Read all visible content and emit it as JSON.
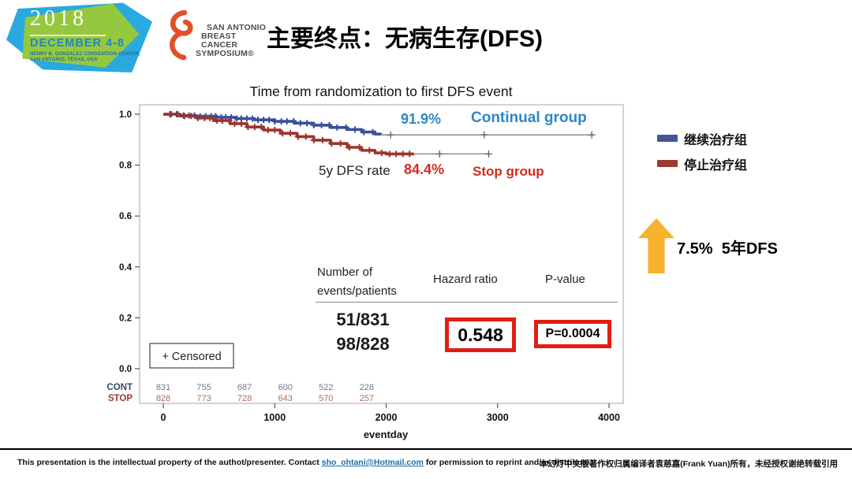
{
  "banner": {
    "year": "2018",
    "dates": "DECEMBER 4-8",
    "venue_line1": "HENRY B. GONZALEZ CONVENTION CENTER,",
    "venue_line2": "SAN ANTONIO, TEXAS, USA"
  },
  "logo": {
    "line1": "SAN ANTONIO",
    "line2": "BREAST CANCER",
    "line3": "SYMPOSIUM®"
  },
  "slide_title": "主要终点：无病生存(DFS)",
  "annotations": {
    "continual_rate": "91.9%",
    "continual_label": "Continual group",
    "rate_label": "5y DFS rate",
    "stop_rate": "84.4%",
    "stop_label": "Stop group"
  },
  "stats_table": {
    "col1_header_line1": "Number of",
    "col1_header_line2": "events/patients",
    "col2_header": "Hazard ratio",
    "col3_header": "P-value",
    "events_continual": "51/831",
    "events_stop": "98/828",
    "hazard_ratio": "0.548",
    "p_value": "P=0.0004"
  },
  "legend": {
    "continual": "继续治疗组",
    "stop": "停止治疗组"
  },
  "highlight": {
    "text": "7.5%  5年DFS"
  },
  "footer": {
    "left_prefix": "This presentation is the intellectual property of the authot/presenter. Contact ",
    "email": "sho_ohtani@Hotmail.com",
    "left_suffix": " for permission to reprint and/or distribute.",
    "right": "本幻灯中文版著作权归属编译者袁慈嘉(Frank  Yuan)所有，未经授权谢绝转载引用"
  },
  "chart_data": {
    "type": "line",
    "subtype": "kaplan-meier",
    "title": "Time from randomization to first DFS event",
    "xlabel": "eventday",
    "xlim": [
      0,
      4000
    ],
    "ylim": [
      0.0,
      1.0
    ],
    "x_ticks": [
      0,
      1000,
      2000,
      3000,
      4000
    ],
    "y_ticks": [
      1.0,
      0.8,
      0.6,
      0.4,
      0.2,
      0.0
    ],
    "grid": false,
    "censored_label": "+ Censored",
    "at_risk_days": [
      0,
      365,
      730,
      1095,
      1460,
      1825
    ],
    "series": [
      {
        "name": "Continual group",
        "color": "#3C4E9E",
        "five_year_rate": 0.919,
        "points": [
          [
            0,
            1.0
          ],
          [
            150,
            0.995
          ],
          [
            300,
            0.992
          ],
          [
            480,
            0.988
          ],
          [
            650,
            0.983
          ],
          [
            820,
            0.978
          ],
          [
            1000,
            0.972
          ],
          [
            1180,
            0.965
          ],
          [
            1350,
            0.957
          ],
          [
            1500,
            0.948
          ],
          [
            1650,
            0.94
          ],
          [
            1780,
            0.93
          ],
          [
            1900,
            0.922
          ],
          [
            1950,
            0.919
          ]
        ],
        "tail_end": 3860,
        "censor_days": [
          60,
          120,
          180,
          230,
          280,
          330,
          380,
          430,
          470,
          520,
          560,
          610,
          660,
          700,
          750,
          800,
          850,
          900,
          950,
          1000,
          1060,
          1110,
          1170,
          1230,
          1290,
          1350,
          1420,
          1490,
          1560,
          1640,
          1720,
          1800,
          1880
        ],
        "tail_censor_days": [
          2040,
          2880,
          3845
        ],
        "at_risk_label": "CONT",
        "at_risk": [
          831,
          755,
          687,
          600,
          522,
          228
        ]
      },
      {
        "name": "Stop group",
        "color": "#9C342C",
        "five_year_rate": 0.844,
        "points": [
          [
            0,
            1.0
          ],
          [
            150,
            0.993
          ],
          [
            300,
            0.985
          ],
          [
            450,
            0.975
          ],
          [
            600,
            0.963
          ],
          [
            750,
            0.95
          ],
          [
            900,
            0.938
          ],
          [
            1050,
            0.925
          ],
          [
            1200,
            0.912
          ],
          [
            1350,
            0.898
          ],
          [
            1500,
            0.885
          ],
          [
            1650,
            0.87
          ],
          [
            1780,
            0.858
          ],
          [
            1900,
            0.848
          ],
          [
            2000,
            0.844
          ],
          [
            2250,
            0.844
          ]
        ],
        "tail_end": 2925,
        "censor_days": [
          70,
          130,
          190,
          250,
          310,
          370,
          420,
          480,
          530,
          590,
          640,
          700,
          760,
          820,
          880,
          940,
          1000,
          1070,
          1140,
          1210,
          1280,
          1350,
          1430,
          1510,
          1590,
          1670,
          1760,
          1850,
          1960,
          2030,
          2090,
          2150,
          2210
        ],
        "tail_censor_days": [
          2480,
          2920
        ],
        "at_risk_label": "STOP",
        "at_risk": [
          828,
          773,
          728,
          643,
          570,
          257
        ]
      }
    ]
  }
}
